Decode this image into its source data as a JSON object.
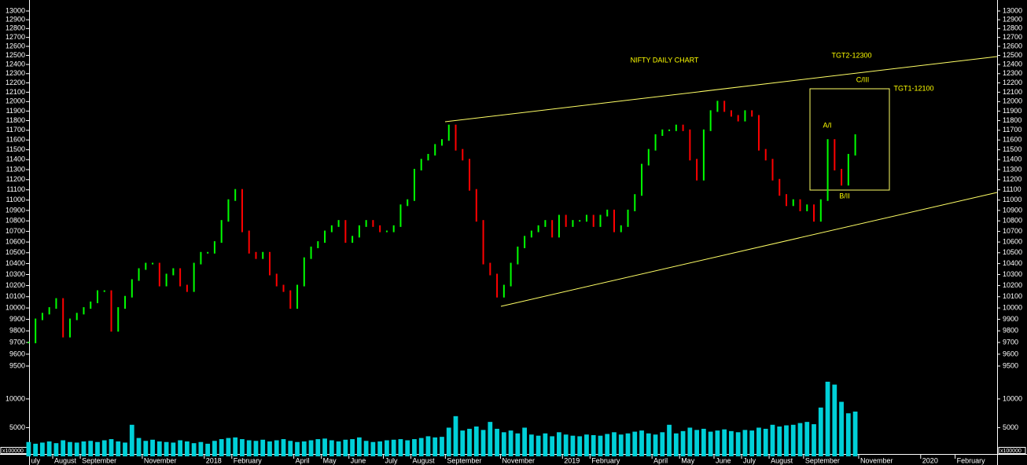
{
  "chart_data": [
    {
      "type": "stock",
      "title": "NIFTY DAILY CHART",
      "categories": [
        "uly",
        null,
        null,
        null,
        "August",
        null,
        null,
        null,
        "September",
        null,
        null,
        null,
        null,
        null,
        null,
        null,
        null,
        "November",
        null,
        null,
        null,
        null,
        null,
        null,
        null,
        null,
        "2018",
        null,
        null,
        null,
        "February",
        null,
        null,
        null,
        null,
        null,
        null,
        null,
        null,
        "April",
        null,
        null,
        null,
        "May",
        null,
        null,
        null,
        "June",
        null,
        null,
        null,
        null,
        "July",
        null,
        null,
        null,
        "August",
        null,
        null,
        null,
        null,
        "September",
        null,
        null,
        null,
        null,
        null,
        null,
        null,
        "November",
        null,
        null,
        null,
        null,
        null,
        null,
        null,
        null,
        "2019",
        null,
        null,
        null,
        "February",
        null,
        null,
        null,
        null,
        null,
        null,
        null,
        null,
        "April",
        null,
        null,
        null,
        "May",
        null,
        null,
        null,
        null,
        "June",
        null,
        null,
        null,
        "July",
        null,
        null,
        null,
        "August",
        null,
        null,
        null,
        null,
        "September",
        null,
        null,
        null,
        null,
        null,
        null,
        null,
        "November",
        null,
        null,
        null,
        null,
        null,
        null,
        null,
        null,
        "2020",
        null,
        null,
        null,
        null,
        "February",
        null,
        null,
        null
      ],
      "values": [
        9700,
        9900,
        9950,
        10000,
        10080,
        9750,
        9900,
        9950,
        10000,
        10050,
        10150,
        10150,
        9800,
        10000,
        10100,
        10250,
        10350,
        10400,
        10400,
        10200,
        10300,
        10350,
        10200,
        10150,
        10400,
        10500,
        10500,
        10600,
        10800,
        11000,
        11100,
        10700,
        10500,
        10450,
        10500,
        10300,
        10200,
        10150,
        10000,
        10200,
        10450,
        10550,
        10600,
        10700,
        10750,
        10800,
        10600,
        10650,
        10750,
        10800,
        10750,
        10700,
        10700,
        10750,
        10950,
        11000,
        11300,
        11400,
        11450,
        11550,
        11600,
        11750,
        11500,
        11400,
        11100,
        10800,
        10400,
        10300,
        10100,
        10200,
        10400,
        10550,
        10650,
        10700,
        10750,
        10800,
        10650,
        10850,
        10750,
        10800,
        10800,
        10850,
        10750,
        10850,
        10900,
        10700,
        10750,
        10900,
        11050,
        11350,
        11500,
        11650,
        11700,
        11700,
        11750,
        11700,
        11400,
        11200,
        11700,
        11900,
        12000,
        11900,
        11850,
        11800,
        11900,
        11850,
        11500,
        11400,
        11200,
        11050,
        10950,
        11000,
        10900,
        10950,
        10800,
        11000,
        11600,
        11300,
        11150,
        11450,
        11650,
        null,
        null,
        null,
        null,
        null,
        null,
        null,
        null,
        null,
        null,
        null,
        null,
        null,
        null,
        null,
        null,
        null,
        null
      ],
      "up_color": "#00ff00",
      "down_color": "#ff0000",
      "log_scale": true,
      "ylim": [
        9500,
        13000
      ],
      "yticks": [
        9500,
        9600,
        9700,
        9800,
        9900,
        10000,
        10100,
        10200,
        10300,
        10400,
        10500,
        10600,
        10700,
        10800,
        10900,
        11000,
        11100,
        11200,
        11300,
        11400,
        11500,
        11600,
        11700,
        11800,
        11900,
        12000,
        12100,
        12200,
        12300,
        12400,
        12500,
        12600,
        12700,
        12800,
        12900,
        13000
      ],
      "annotations": [
        "TGT2-12300",
        "C/III",
        "TGT1-12100",
        "A/I",
        "B/II"
      ]
    },
    {
      "type": "bar",
      "color": "#00d0d8",
      "unit_label": "x100000",
      "values": [
        2500,
        2200,
        2400,
        2600,
        2300,
        2800,
        2500,
        2400,
        2600,
        2700,
        2500,
        2800,
        3000,
        2600,
        2400,
        5500,
        3200,
        2700,
        2900,
        2600,
        2500,
        2400,
        2800,
        2600,
        2300,
        2500,
        2200,
        2700,
        3000,
        3200,
        3300,
        3000,
        2800,
        2700,
        2900,
        2600,
        2800,
        3000,
        2700,
        2500,
        2600,
        2800,
        3000,
        3100,
        2800,
        2600,
        2900,
        3000,
        3300,
        2700,
        2500,
        2600,
        2800,
        2900,
        3000,
        2800,
        3000,
        3200,
        3500,
        3300,
        3400,
        5000,
        7000,
        4500,
        4800,
        5200,
        4600,
        6000,
        4800,
        4200,
        4500,
        4000,
        5000,
        3800,
        3600,
        4000,
        3500,
        4200,
        3800,
        3600,
        3500,
        3800,
        3700,
        3600,
        3900,
        4200,
        3800,
        4000,
        4300,
        4500,
        4000,
        3800,
        4200,
        5500,
        4000,
        4400,
        5000,
        4600,
        4800,
        4300,
        4500,
        4700,
        4400,
        4200,
        4600,
        4500,
        5000,
        4800,
        5500,
        5200,
        5400,
        5500,
        5800,
        6000,
        5600,
        8500,
        13000,
        12500,
        9500,
        7500,
        7800,
        null,
        null,
        null,
        null,
        null,
        null,
        null,
        null,
        null,
        null,
        null,
        null,
        null,
        null,
        null,
        null,
        null,
        null
      ],
      "ylim": [
        0,
        14500
      ],
      "yticks": [
        5000,
        10000
      ]
    }
  ]
}
